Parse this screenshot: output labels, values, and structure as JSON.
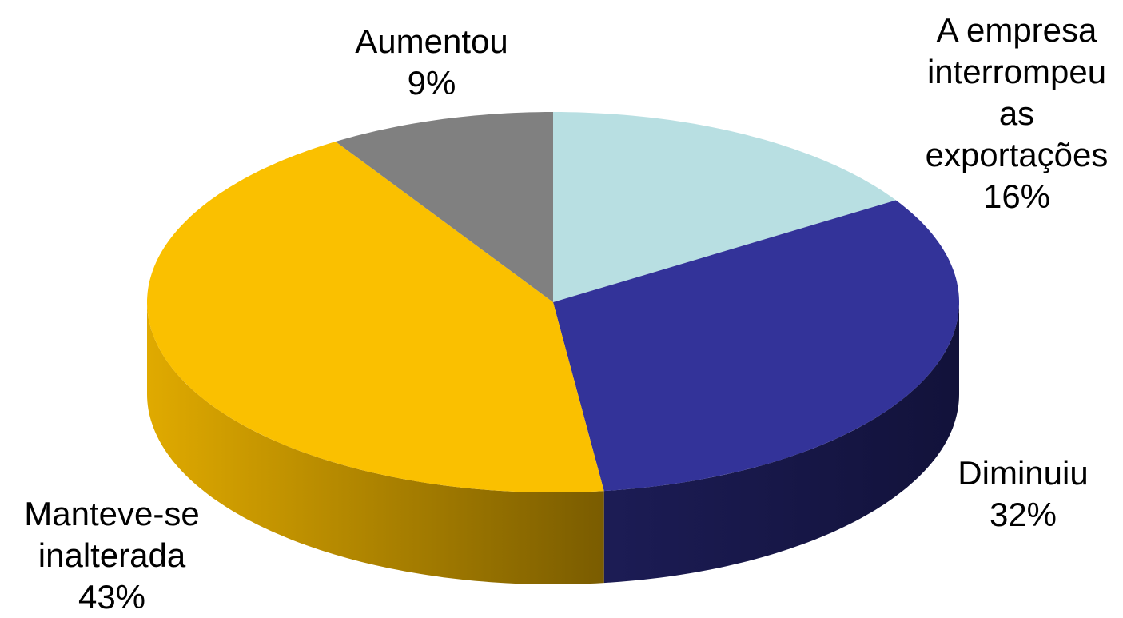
{
  "chart_data": {
    "type": "pie3d",
    "categories": [
      "A empresa interrompeu as exportações",
      "Diminuiu",
      "Manteve-se inalterada",
      "Aumentou"
    ],
    "values": [
      16,
      32,
      43,
      9
    ],
    "value_labels": [
      "16%",
      "32%",
      "43%",
      "9%"
    ],
    "colors": [
      "#b8dfe2",
      "#333399",
      "#fac000",
      "#808080"
    ]
  }
}
